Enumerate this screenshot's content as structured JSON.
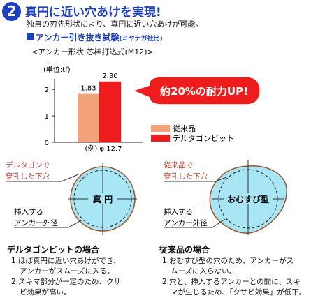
{
  "header": {
    "number": "2",
    "title": "真円に近い穴あけを実現!",
    "subtitle": "独自の刃先形状により、真円に近い穴あけが可能。",
    "test_title": "アンカー引き抜き試験",
    "test_org": "(ミヤナガ社比)",
    "condition": "<アンカー形状:芯棒打込式(M12)>"
  },
  "callout": "約20%の耐力UP!",
  "chart_data": {
    "type": "bar",
    "unit_label": "(単位:tf)",
    "categories": [
      "(例) φ 12.7"
    ],
    "series": [
      {
        "name": "従来品",
        "values": [
          1.83
        ],
        "color": "#f4a27a"
      },
      {
        "name": "デルタゴンビット",
        "values": [
          2.3
        ],
        "color": "#ee1c1c"
      }
    ],
    "data_labels": [
      "1.83",
      "2.30"
    ],
    "ylim": [
      0,
      2.4
    ],
    "yticks": [
      "0",
      "1",
      "2"
    ],
    "legend_position": "bottom-right"
  },
  "diagram_left": {
    "hole_label": [
      "デルタゴンで",
      "穿孔した下穴"
    ],
    "center_label": "真 円",
    "anchor_label": [
      "挿入する",
      "アンカー外径"
    ]
  },
  "diagram_right": {
    "hole_label": [
      "従来品で",
      "穿孔した下穴"
    ],
    "center_label": "おむすび型",
    "anchor_label": [
      "挿入する",
      "アンカー外径"
    ]
  },
  "section_left": {
    "title": "デルタゴンビットの場合",
    "items": [
      "1.ほぼ真円に近い穴あけができ、",
      "  アンカーがスムーズに入る。",
      "2.スキマ部分が一定のため、クサ",
      "  ビ効果が高い。"
    ]
  },
  "section_right": {
    "title": "従来品の場合",
    "items": [
      "1.おむすび型の穴のため、アンカーがス",
      "  ムーズに入らない。",
      "2.穴と、挿入するアンカーとの間に、スキ",
      "  マが生じるため、「クサビ効果」が低下。"
    ]
  },
  "colors": {
    "blue": "#1b3fbf",
    "red": "#ee1c1c",
    "orange": "#f4a27a",
    "brown": "#a0522d",
    "cyan": "#a8e6f5",
    "label_red": "#c0392b"
  }
}
